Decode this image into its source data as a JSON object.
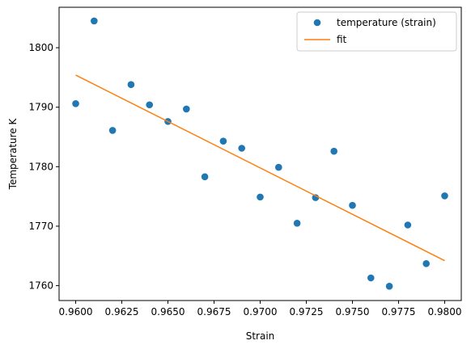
{
  "chart_data": {
    "type": "scatter",
    "title": "",
    "xlabel": "Strain",
    "ylabel": "Temperature K",
    "xlim": [
      0.9591,
      0.9809
    ],
    "ylim": [
      1757.5,
      1806.8
    ],
    "xticks": [
      0.96,
      0.9625,
      0.965,
      0.9675,
      0.97,
      0.9725,
      0.975,
      0.9775,
      0.98
    ],
    "xtick_labels": [
      "0.9600",
      "0.9625",
      "0.9650",
      "0.9675",
      "0.9700",
      "0.9725",
      "0.9750",
      "0.9775",
      "0.9800"
    ],
    "yticks": [
      1760,
      1770,
      1780,
      1790,
      1800
    ],
    "ytick_labels": [
      "1760",
      "1770",
      "1780",
      "1790",
      "1800"
    ],
    "grid": false,
    "legend": {
      "position": "top-right",
      "entries": [
        {
          "label": "temperature (strain)",
          "marker": "circle",
          "color": "#1f77b4"
        },
        {
          "label": "fit",
          "marker": "line",
          "color": "#ff7f0e"
        }
      ]
    },
    "series": [
      {
        "name": "temperature (strain)",
        "kind": "scatter",
        "color": "#1f77b4",
        "x": [
          0.96,
          0.961,
          0.962,
          0.963,
          0.964,
          0.965,
          0.966,
          0.967,
          0.968,
          0.969,
          0.97,
          0.971,
          0.972,
          0.973,
          0.974,
          0.975,
          0.976,
          0.977,
          0.978,
          0.979,
          0.98
        ],
        "y": [
          1790.6,
          1804.5,
          1786.1,
          1793.8,
          1790.4,
          1787.6,
          1789.7,
          1778.3,
          1784.3,
          1783.1,
          1774.9,
          1779.9,
          1770.5,
          1774.8,
          1782.6,
          1773.5,
          1761.3,
          1759.9,
          1770.2,
          1763.7,
          1775.1
        ]
      },
      {
        "name": "fit",
        "kind": "line",
        "color": "#ff7f0e",
        "x": [
          0.96,
          0.98
        ],
        "y": [
          1795.4,
          1764.2
        ]
      }
    ]
  }
}
